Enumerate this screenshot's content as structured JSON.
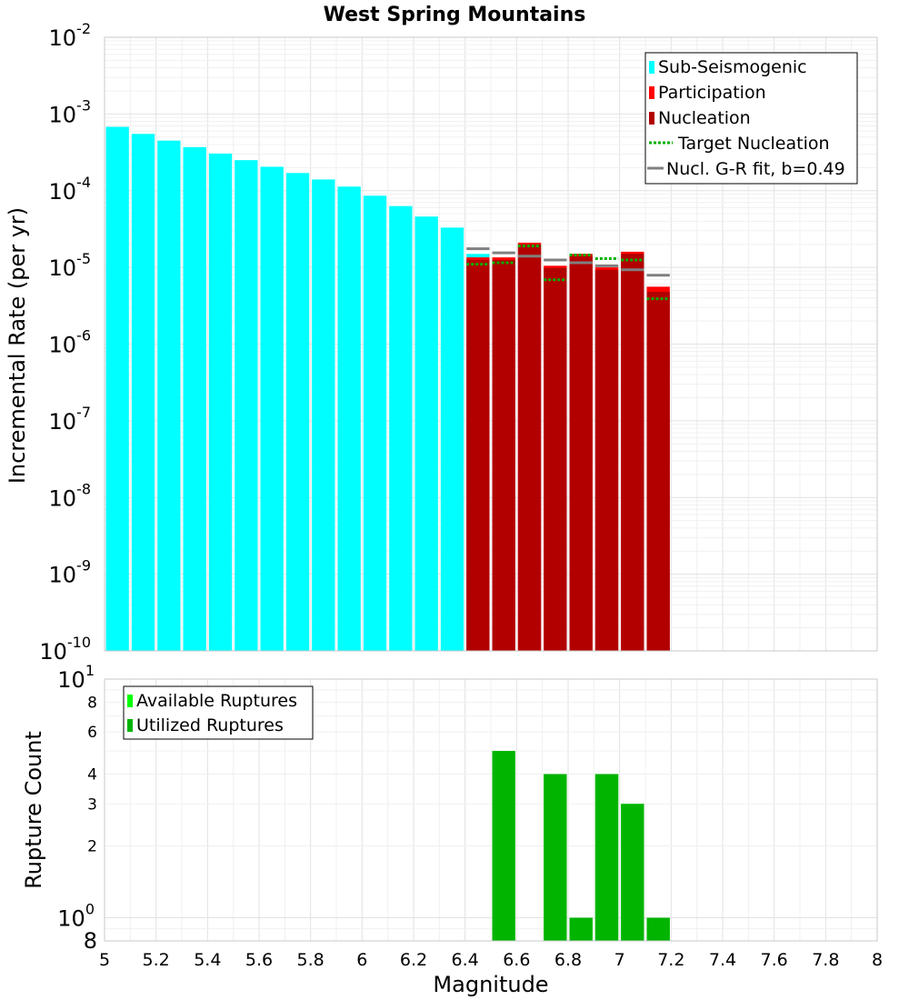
{
  "chart_data": [
    {
      "type": "bar",
      "title": "West Spring Mountains",
      "xlabel": "",
      "ylabel": "Incremental Rate (per yr)",
      "yscale": "log",
      "xlim": [
        5,
        8
      ],
      "ylim": [
        1e-10,
        0.01
      ],
      "y_ticks": [
        {
          "base": "10",
          "exp": "-10"
        },
        {
          "base": "10",
          "exp": "-9"
        },
        {
          "base": "10",
          "exp": "-8"
        },
        {
          "base": "10",
          "exp": "-7"
        },
        {
          "base": "10",
          "exp": "-6"
        },
        {
          "base": "10",
          "exp": "-5"
        },
        {
          "base": "10",
          "exp": "-4"
        },
        {
          "base": "10",
          "exp": "-3"
        },
        {
          "base": "10",
          "exp": "-2"
        }
      ],
      "bin_width": 0.1,
      "legend_position": "top-right",
      "series": [
        {
          "name": "Sub-Seismogenic",
          "color": "#00ffff",
          "x": [
            5.05,
            5.15,
            5.25,
            5.35,
            5.45,
            5.55,
            5.65,
            5.75,
            5.85,
            5.95,
            6.05,
            6.15,
            6.25,
            6.35,
            6.45
          ],
          "values": [
            0.00068,
            0.00055,
            0.00045,
            0.00037,
            0.000305,
            0.00025,
            0.000205,
            0.00017,
            0.00014,
            0.000113,
            8.6e-05,
            6.3e-05,
            4.6e-05,
            3.3e-05,
            1.5e-05
          ]
        },
        {
          "name": "Participation",
          "color": "#ff0000",
          "x": [
            6.45,
            6.55,
            6.65,
            6.75,
            6.85,
            6.95,
            7.05,
            7.15
          ],
          "values": [
            1.35e-05,
            1.35e-05,
            2.1e-05,
            1.05e-05,
            1.5e-05,
            1e-05,
            1.6e-05,
            5.6e-06
          ]
        },
        {
          "name": "Nucleation",
          "color": "#b20000",
          "x": [
            6.45,
            6.55,
            6.65,
            6.75,
            6.85,
            6.95,
            7.05,
            7.15
          ],
          "values": [
            1.25e-05,
            1.25e-05,
            2e-05,
            9.8e-06,
            1.4e-05,
            9.3e-06,
            1.5e-05,
            4.8e-06
          ]
        },
        {
          "name": "Target Nucleation",
          "color": "#00b000",
          "style": "dotted",
          "x": [
            6.45,
            6.55,
            6.65,
            6.75,
            6.85,
            6.95,
            7.05,
            7.15
          ],
          "values": [
            1.1e-05,
            1.15e-05,
            1.9e-05,
            6.9e-06,
            1.45e-05,
            1.3e-05,
            1.25e-05,
            3.9e-06
          ]
        },
        {
          "name": "Nucl. G-R fit, b=0.49",
          "color": "#808080",
          "style": "solid",
          "x": [
            6.45,
            6.55,
            6.65,
            6.75,
            6.85,
            6.95,
            7.05,
            7.15
          ],
          "values": [
            1.75e-05,
            1.55e-05,
            1.4e-05,
            1.25e-05,
            1.15e-05,
            1.05e-05,
            9.3e-06,
            7.9e-06
          ]
        }
      ]
    },
    {
      "type": "bar",
      "title": "",
      "xlabel": "Magnitude",
      "ylabel": "Rupture Count",
      "yscale": "log",
      "xlim": [
        5,
        8
      ],
      "ylim": [
        0.8,
        10
      ],
      "x_ticks": [
        "5",
        "5.2",
        "5.4",
        "5.6",
        "5.8",
        "6",
        "6.2",
        "6.4",
        "6.6",
        "6.8",
        "7",
        "7.2",
        "7.4",
        "7.6",
        "7.8",
        "8"
      ],
      "y_ticks": [
        {
          "value": 10,
          "base": "10",
          "exp": "1"
        },
        {
          "value": 1,
          "base": "10",
          "exp": "0"
        }
      ],
      "y_minor_labels": [
        {
          "value": 8,
          "label": "8"
        },
        {
          "value": 6,
          "label": "6"
        },
        {
          "value": 4,
          "label": "4"
        },
        {
          "value": 3,
          "label": "3"
        },
        {
          "value": 2,
          "label": "2"
        },
        {
          "value": 0.8,
          "label": "8"
        }
      ],
      "legend_position": "top-left",
      "series": [
        {
          "name": "Available Ruptures",
          "color": "#00ff00",
          "x": [
            6.55,
            6.75,
            6.85,
            6.95,
            7.05,
            7.15
          ],
          "values": [
            5,
            4,
            1,
            4,
            3,
            1
          ]
        },
        {
          "name": "Utilized Ruptures",
          "color": "#00b400",
          "x": [
            6.55,
            6.75,
            6.85,
            6.95,
            7.05,
            7.15
          ],
          "values": [
            5,
            4,
            1,
            4,
            3,
            1
          ]
        }
      ]
    }
  ]
}
